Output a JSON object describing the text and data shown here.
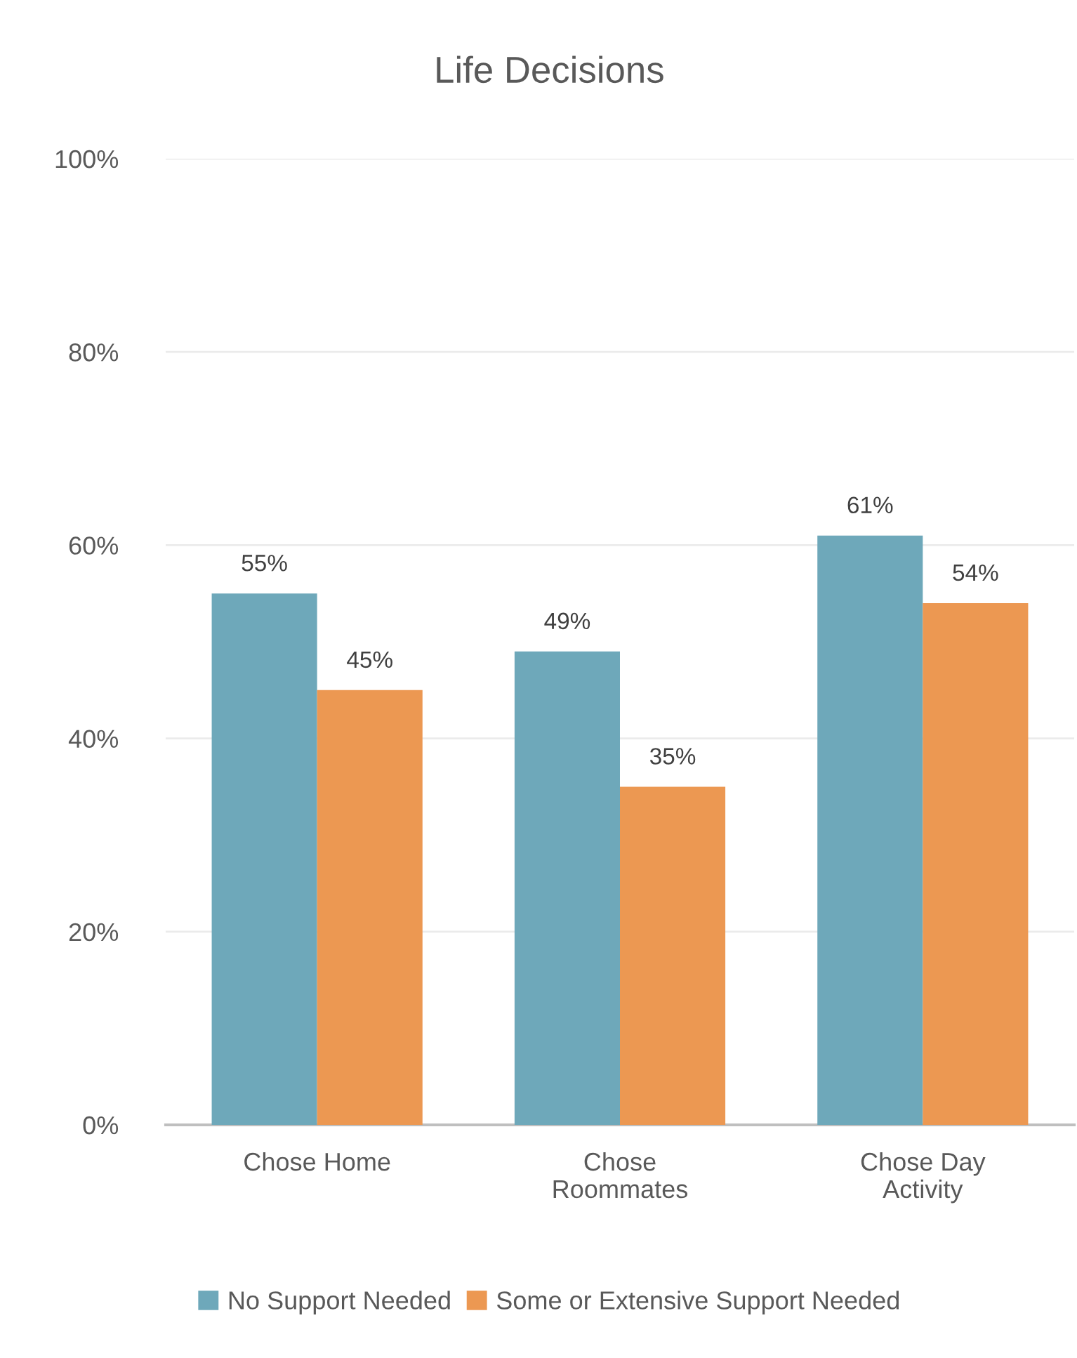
{
  "chart_data": {
    "type": "bar",
    "title": "Life Decisions",
    "categories": [
      "Chose Home",
      "Chose\nRoommates",
      "Chose Day\nActivity"
    ],
    "series": [
      {
        "name": "No Support Needed",
        "color": "#6ea8ba",
        "values": [
          55,
          49,
          61
        ],
        "value_labels": [
          "55%",
          "49%",
          "61%"
        ]
      },
      {
        "name": "Some or Extensive Support Needed",
        "color": "#ec9852",
        "values": [
          45,
          35,
          54
        ],
        "value_labels": [
          "45%",
          "35%",
          "54%"
        ]
      }
    ],
    "ylim": [
      0,
      100
    ],
    "yticks": [
      {
        "value": 0,
        "label": "0%"
      },
      {
        "value": 20,
        "label": "20%"
      },
      {
        "value": 40,
        "label": "40%"
      },
      {
        "value": 60,
        "label": "60%"
      },
      {
        "value": 80,
        "label": "80%"
      },
      {
        "value": 100,
        "label": "100%"
      }
    ],
    "grid": "y",
    "legend": "bottom"
  }
}
